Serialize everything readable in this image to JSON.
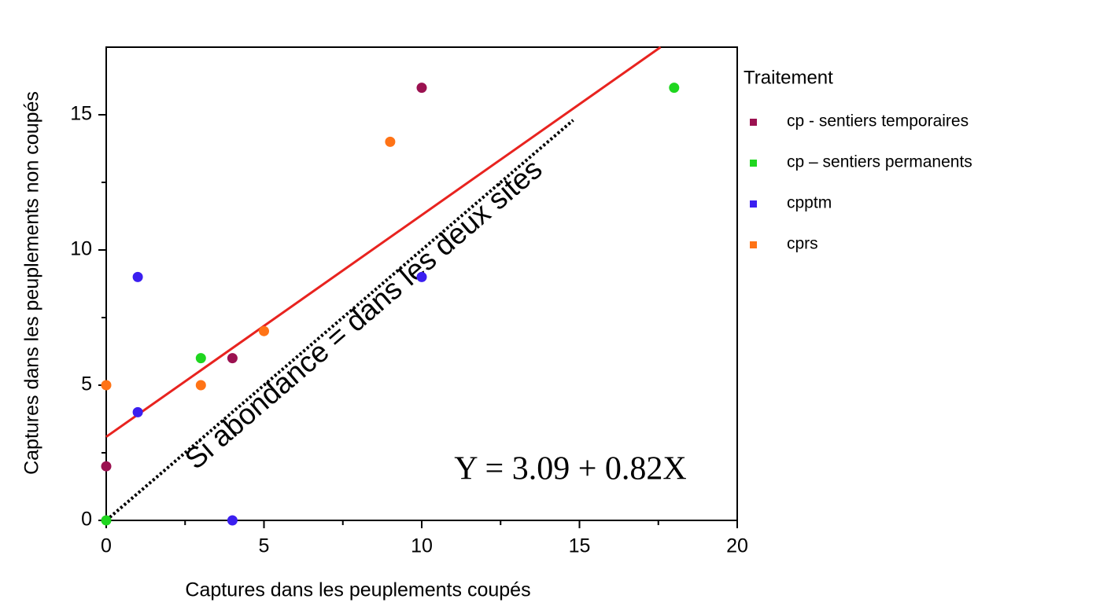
{
  "chart_data": {
    "type": "scatter",
    "xlabel": "Captures dans les peuplements coupés",
    "ylabel": "Captures dans les peuplements  non coupés",
    "xlim": [
      0,
      20
    ],
    "ylim": [
      0,
      17.5
    ],
    "xticks": [
      0,
      5,
      10,
      15,
      20
    ],
    "yticks": [
      0,
      5,
      10,
      15
    ],
    "xminorticks": [
      2.5,
      7.5,
      12.5,
      17.5
    ],
    "yminorticks": [
      2.5,
      7.5,
      12.5
    ],
    "legend_title": "Traitement",
    "legend": "right",
    "series": [
      {
        "name": "cp - sentiers temporaires",
        "color": "#9b1150",
        "x": [
          0,
          4,
          10
        ],
        "y": [
          2,
          6,
          16
        ]
      },
      {
        "name": "cp – sentiers permanents",
        "color": "#1fd61f",
        "x": [
          0,
          3,
          18
        ],
        "y": [
          0,
          6,
          16
        ]
      },
      {
        "name": "cpptm",
        "color": "#3b1ff0",
        "x": [
          1,
          1,
          4,
          10
        ],
        "y": [
          9,
          4,
          0,
          9
        ]
      },
      {
        "name": "cprs",
        "color": "#ff7316",
        "x": [
          0,
          3,
          5,
          9
        ],
        "y": [
          5,
          5,
          7,
          14
        ]
      }
    ],
    "fit_line": {
      "color": "#e8231f",
      "x": [
        0,
        17.57
      ],
      "y": [
        3.09,
        17.5
      ]
    },
    "identity_line": {
      "label": "Si abondance = dans les deux sites",
      "x": [
        0,
        14.8
      ],
      "y": [
        0,
        14.8
      ]
    },
    "equation": "Y = 3.09 + 0.82X"
  }
}
